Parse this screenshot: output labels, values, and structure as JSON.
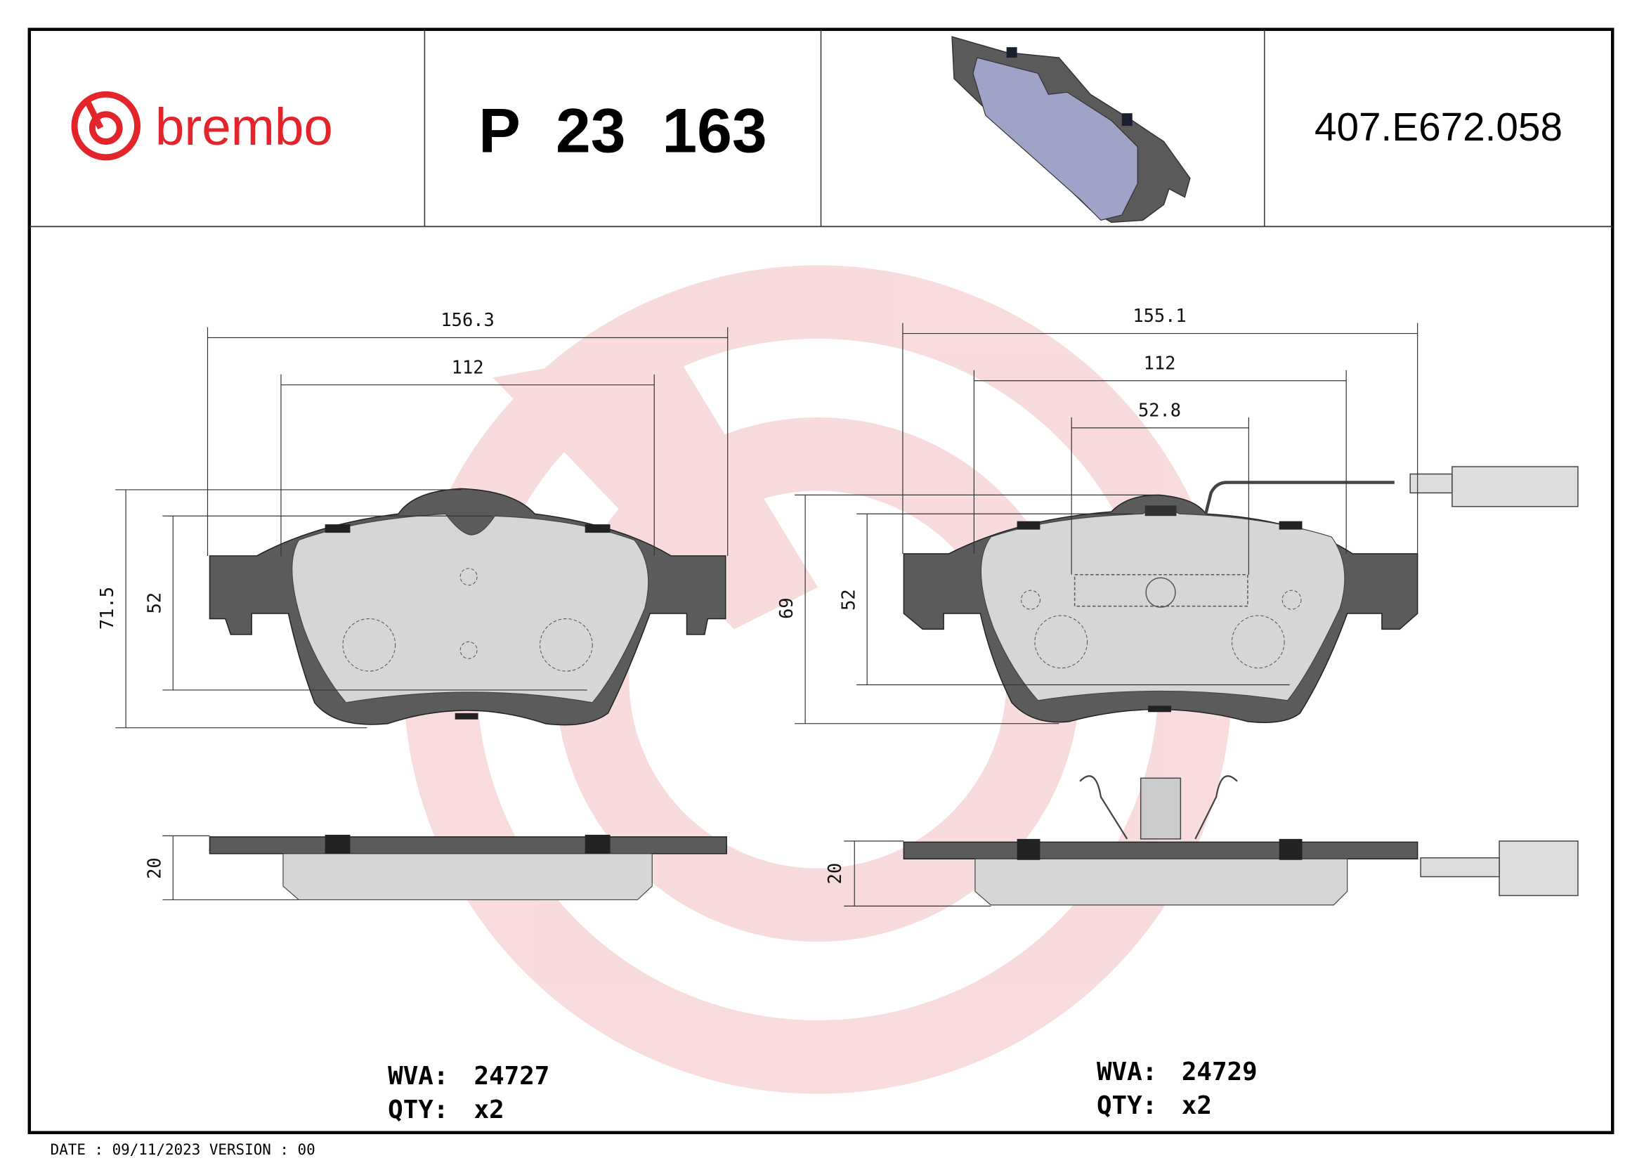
{
  "header": {
    "brand": "brembo",
    "brand_color": "#e3242b",
    "part_number": "P 23 163",
    "code": "407.E672.058"
  },
  "left_pad": {
    "dimensions": {
      "width_total": "156.3",
      "width_inner": "112",
      "height_total": "71.5",
      "height_inner": "52",
      "thickness": "20"
    },
    "wva_label": "WVA:",
    "wva_value": "24727",
    "qty_label": "QTY:",
    "qty_value": "x2"
  },
  "right_pad": {
    "dimensions": {
      "width_total": "155.1",
      "width_inner": "112",
      "width_center": "52.8",
      "height_total": "69",
      "height_inner": "52",
      "thickness": "20"
    },
    "wva_label": "WVA:",
    "wva_value": "24729",
    "qty_label": "QTY:",
    "qty_value": "x2"
  },
  "footer": {
    "date_text": "DATE : 09/11/2023 VERSION : 00"
  },
  "icons": {
    "logo": "brembo-logo-icon",
    "watermark": "brembo-watermark-icon",
    "pad_render": "brake-pad-3d-icon"
  }
}
